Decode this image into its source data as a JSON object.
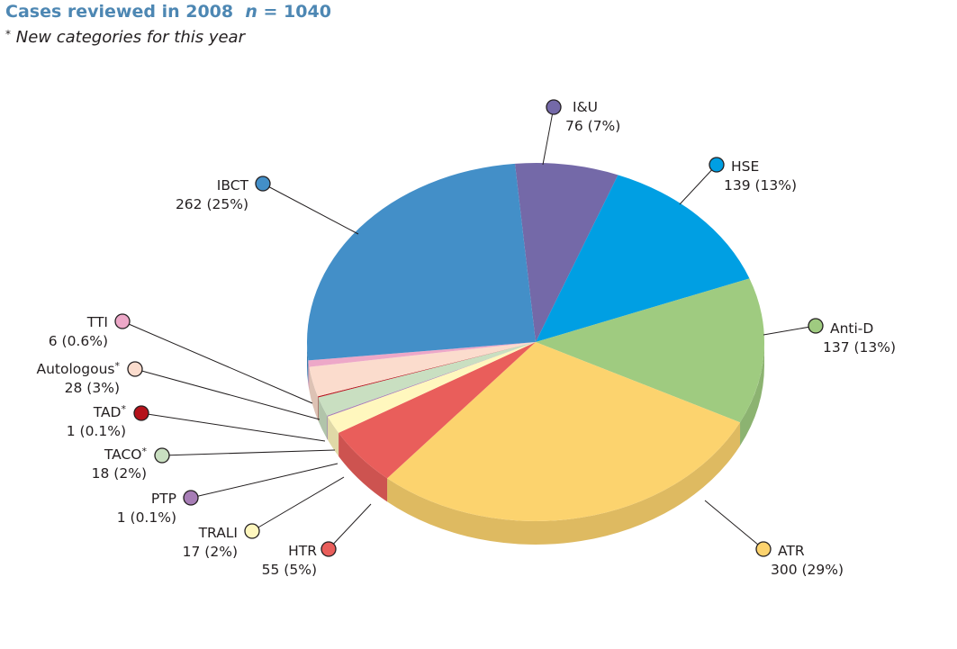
{
  "title": {
    "text": "Cases reviewed in 2008",
    "n_label": "n",
    "n_value": "= 1040"
  },
  "subtitle": {
    "marker": "*",
    "text": "New categories for this year"
  },
  "chart_data": {
    "type": "pie",
    "style": "3d-tilted",
    "total": 1040,
    "slices": [
      {
        "name": "I&U",
        "value": 76,
        "value_label": "76 (7%)",
        "new": false,
        "color": "#7469a8"
      },
      {
        "name": "HSE",
        "value": 139,
        "value_label": "139 (13%)",
        "new": false,
        "color": "#009fe3"
      },
      {
        "name": "Anti-D",
        "value": 137,
        "value_label": "137 (13%)",
        "new": false,
        "color": "#9fcb80"
      },
      {
        "name": "ATR",
        "value": 300,
        "value_label": "300 (29%)",
        "new": false,
        "color": "#fcd36e"
      },
      {
        "name": "HTR",
        "value": 55,
        "value_label": "55 (5%)",
        "new": false,
        "color": "#e95e5b"
      },
      {
        "name": "TRALI",
        "value": 17,
        "value_label": "17 (2%)",
        "new": false,
        "color": "#fff7be"
      },
      {
        "name": "PTP",
        "value": 1,
        "value_label": "1 (0.1%)",
        "new": false,
        "color": "#a77db6"
      },
      {
        "name": "TACO",
        "value": 18,
        "value_label": "18 (2%)",
        "new": true,
        "color": "#c9dfc1"
      },
      {
        "name": "TAD",
        "value": 1,
        "value_label": "1 (0.1%)",
        "new": true,
        "color": "#b5121b"
      },
      {
        "name": "Autologous",
        "value": 28,
        "value_label": "28 (3%)",
        "new": true,
        "color": "#fbdccd"
      },
      {
        "name": "TTI",
        "value": 6,
        "value_label": "6 (0.6%)",
        "new": false,
        "color": "#eda8c8"
      },
      {
        "name": "IBCT",
        "value": 262,
        "value_label": "262 (25%)",
        "new": false,
        "color": "#438fc8"
      }
    ]
  }
}
